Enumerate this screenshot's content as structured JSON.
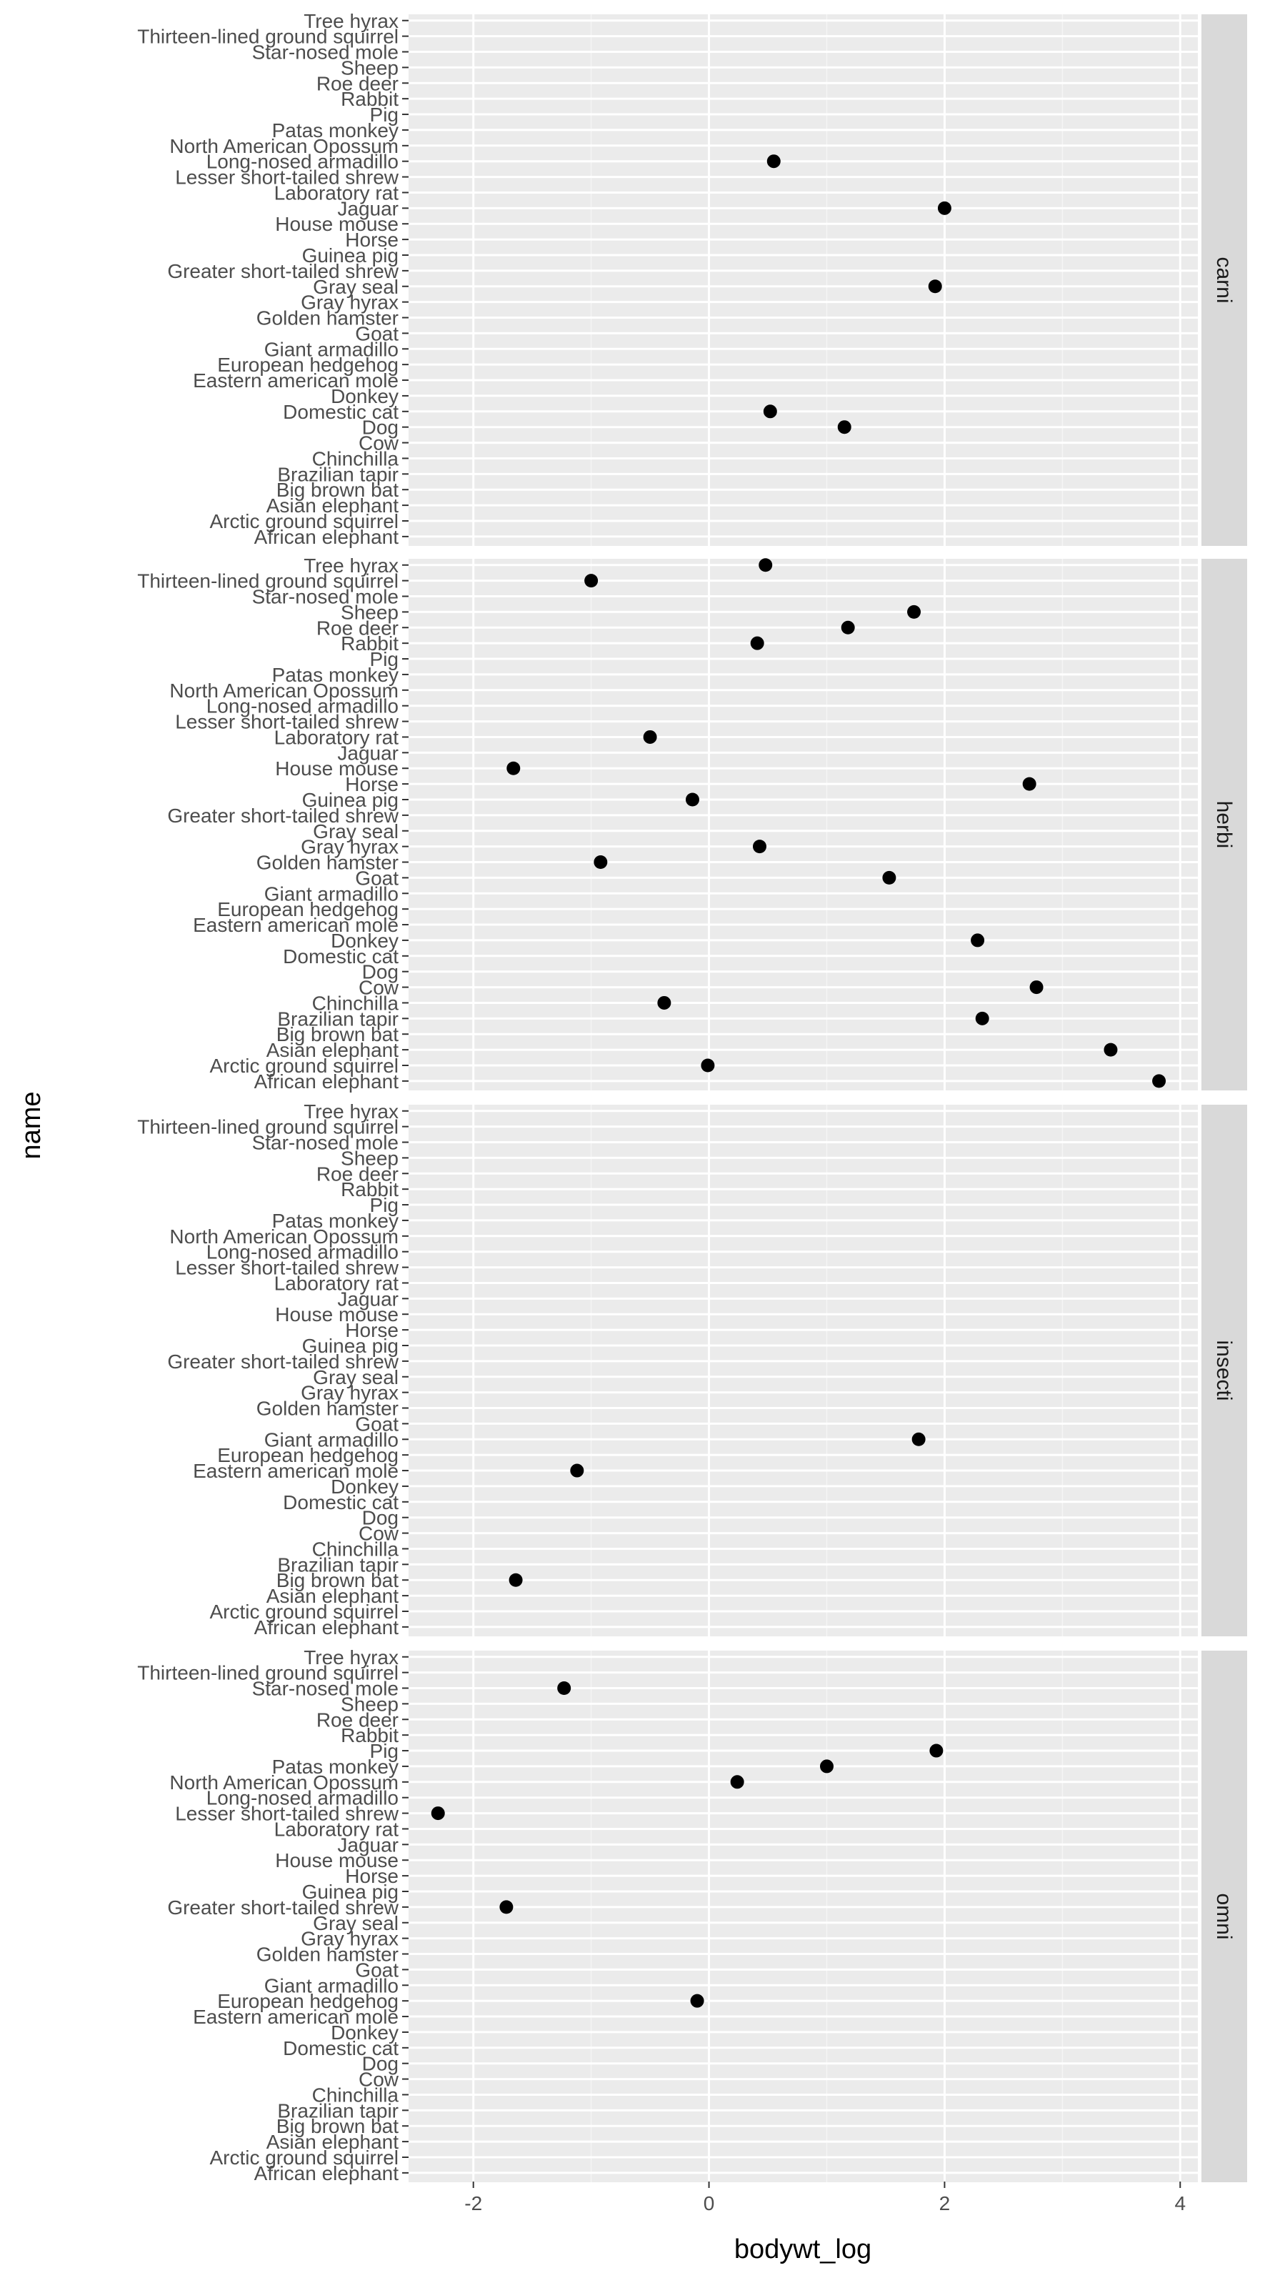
{
  "chart_data": {
    "type": "scatter",
    "xlabel": "bodywt_log",
    "ylabel": "name",
    "xlim": [
      -2.55,
      4.15
    ],
    "x_ticks": [
      -2,
      0,
      2,
      4
    ],
    "x_tick_labels": [
      "-2",
      "0",
      "2",
      "4"
    ],
    "grid": true,
    "legend": "none",
    "facet_by": "vore",
    "point_color": "#000000",
    "panel_background": "#ebebeb",
    "strip_background": "#d9d9d9",
    "names": [
      "African elephant",
      "Arctic ground squirrel",
      "Asian elephant",
      "Big brown bat",
      "Brazilian tapir",
      "Chinchilla",
      "Cow",
      "Dog",
      "Domestic cat",
      "Donkey",
      "Eastern american mole",
      "European hedgehog",
      "Giant armadillo",
      "Goat",
      "Golden hamster",
      "Gray hyrax",
      "Gray seal",
      "Greater short-tailed shrew",
      "Guinea pig",
      "Horse",
      "House mouse",
      "Jaguar",
      "Laboratory rat",
      "Lesser short-tailed shrew",
      "Long-nosed armadillo",
      "North American Opossum",
      "Patas monkey",
      "Pig",
      "Rabbit",
      "Roe deer",
      "Sheep",
      "Star-nosed mole",
      "Thirteen-lined ground squirrel",
      "Tree hyrax"
    ],
    "facets": [
      {
        "label": "carni",
        "points": [
          {
            "name": "Long-nosed armadillo",
            "x": 0.55
          },
          {
            "name": "Jaguar",
            "x": 2.0
          },
          {
            "name": "Gray seal",
            "x": 1.92
          },
          {
            "name": "Domestic cat",
            "x": 0.52
          },
          {
            "name": "Dog",
            "x": 1.15
          }
        ]
      },
      {
        "label": "herbi",
        "points": [
          {
            "name": "Tree hyrax",
            "x": 0.48
          },
          {
            "name": "Thirteen-lined ground squirrel",
            "x": -1.0
          },
          {
            "name": "Sheep",
            "x": 1.74
          },
          {
            "name": "Roe deer",
            "x": 1.18
          },
          {
            "name": "Rabbit",
            "x": 0.41
          },
          {
            "name": "Laboratory rat",
            "x": -0.5
          },
          {
            "name": "House mouse",
            "x": -1.66
          },
          {
            "name": "Horse",
            "x": 2.72
          },
          {
            "name": "Guinea pig",
            "x": -0.14
          },
          {
            "name": "Gray hyrax",
            "x": 0.43
          },
          {
            "name": "Golden hamster",
            "x": -0.92
          },
          {
            "name": "Goat",
            "x": 1.53
          },
          {
            "name": "Donkey",
            "x": 2.28
          },
          {
            "name": "Cow",
            "x": 2.78
          },
          {
            "name": "Chinchilla",
            "x": -0.38
          },
          {
            "name": "Brazilian tapir",
            "x": 2.32
          },
          {
            "name": "Asian elephant",
            "x": 3.41
          },
          {
            "name": "Arctic ground squirrel",
            "x": -0.01
          },
          {
            "name": "African elephant",
            "x": 3.82
          }
        ]
      },
      {
        "label": "insecti",
        "points": [
          {
            "name": "Giant armadillo",
            "x": 1.78
          },
          {
            "name": "Eastern american mole",
            "x": -1.12
          },
          {
            "name": "Big brown bat",
            "x": -1.64
          }
        ]
      },
      {
        "label": "omni",
        "points": [
          {
            "name": "Star-nosed mole",
            "x": -1.23
          },
          {
            "name": "Pig",
            "x": 1.93
          },
          {
            "name": "Patas monkey",
            "x": 1.0
          },
          {
            "name": "North American Opossum",
            "x": 0.24
          },
          {
            "name": "Lesser short-tailed shrew",
            "x": -2.3
          },
          {
            "name": "Greater short-tailed shrew",
            "x": -1.72
          },
          {
            "name": "European hedgehog",
            "x": -0.1
          }
        ]
      }
    ]
  }
}
